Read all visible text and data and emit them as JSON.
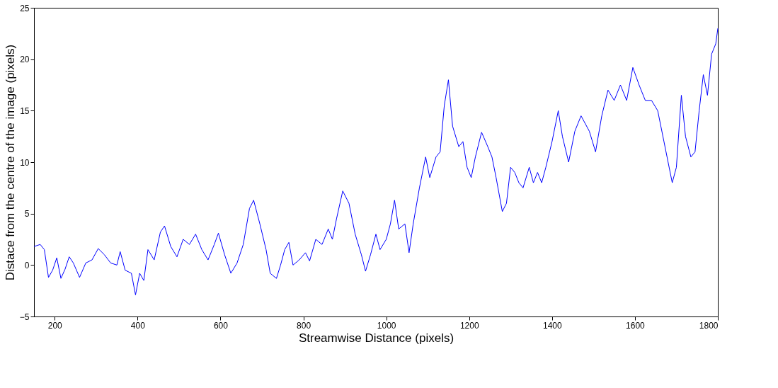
{
  "chart_data": {
    "type": "line",
    "xlabel": "Streamwise Distance (pixels)",
    "ylabel": "Distace from the centre of the image (pixels)",
    "x": [
      150,
      165,
      175,
      185,
      195,
      205,
      215,
      225,
      235,
      245,
      260,
      275,
      290,
      305,
      320,
      335,
      350,
      358,
      370,
      385,
      395,
      405,
      415,
      425,
      440,
      455,
      465,
      480,
      495,
      510,
      525,
      540,
      555,
      570,
      585,
      595,
      610,
      625,
      640,
      655,
      670,
      680,
      695,
      710,
      720,
      735,
      745,
      755,
      765,
      775,
      790,
      805,
      815,
      830,
      845,
      860,
      870,
      880,
      895,
      910,
      925,
      940,
      950,
      962,
      975,
      985,
      1000,
      1010,
      1020,
      1030,
      1045,
      1055,
      1065,
      1080,
      1095,
      1105,
      1120,
      1130,
      1140,
      1150,
      1160,
      1175,
      1185,
      1195,
      1205,
      1215,
      1230,
      1245,
      1255,
      1265,
      1280,
      1290,
      1300,
      1310,
      1320,
      1330,
      1345,
      1355,
      1365,
      1375,
      1385,
      1400,
      1415,
      1425,
      1440,
      1455,
      1470,
      1490,
      1505,
      1520,
      1535,
      1550,
      1565,
      1580,
      1595,
      1610,
      1625,
      1640,
      1655,
      1670,
      1680,
      1690,
      1700,
      1712,
      1722,
      1735,
      1745,
      1755,
      1765,
      1775,
      1785,
      1795,
      1800
    ],
    "series": [
      {
        "color": "#0000ff",
        "values": [
          1.8,
          2.0,
          1.5,
          -1.2,
          -0.5,
          0.7,
          -1.3,
          -0.4,
          0.8,
          0.2,
          -1.2,
          0.2,
          0.5,
          1.6,
          1.0,
          0.2,
          0.0,
          1.3,
          -0.5,
          -0.8,
          -2.9,
          -0.8,
          -1.5,
          1.5,
          0.5,
          3.2,
          3.8,
          1.8,
          0.8,
          2.5,
          2.0,
          3.0,
          1.5,
          0.5,
          2.0,
          3.1,
          1.0,
          -0.8,
          0.2,
          2.0,
          5.5,
          6.3,
          4.0,
          1.5,
          -0.8,
          -1.3,
          0.0,
          1.5,
          2.2,
          0.0,
          0.5,
          1.2,
          0.4,
          2.5,
          2.0,
          3.5,
          2.5,
          4.5,
          7.2,
          6.0,
          3.0,
          1.0,
          -0.6,
          1.0,
          3.0,
          1.5,
          2.5,
          4.0,
          6.3,
          3.5,
          4.0,
          1.2,
          4.0,
          7.5,
          10.5,
          8.5,
          10.5,
          11.0,
          15.5,
          18.0,
          13.5,
          11.5,
          12.0,
          9.5,
          8.5,
          10.5,
          12.9,
          11.5,
          10.5,
          8.5,
          5.2,
          6.0,
          9.5,
          9.0,
          8.0,
          7.5,
          9.5,
          8.0,
          9.0,
          8.0,
          9.5,
          12.0,
          15.0,
          12.5,
          10.0,
          13.0,
          14.5,
          13.0,
          11.0,
          14.5,
          17.0,
          16.0,
          17.5,
          16.0,
          19.2,
          17.5,
          16.0,
          16.0,
          15.0,
          12.0,
          10.0,
          8.0,
          9.5,
          16.5,
          12.5,
          10.5,
          11.0,
          15.0,
          18.5,
          16.5,
          20.5,
          21.5,
          23.0
        ]
      }
    ],
    "xlim": [
      150,
      1800
    ],
    "xticks": [
      200,
      400,
      600,
      800,
      1000,
      1200,
      1400,
      1600,
      1800
    ],
    "ylim": [
      -5,
      25
    ],
    "yticks": [
      -5,
      0,
      5,
      10,
      15,
      20,
      25
    ],
    "grid": false,
    "marker": "none",
    "line_style": "solid"
  }
}
